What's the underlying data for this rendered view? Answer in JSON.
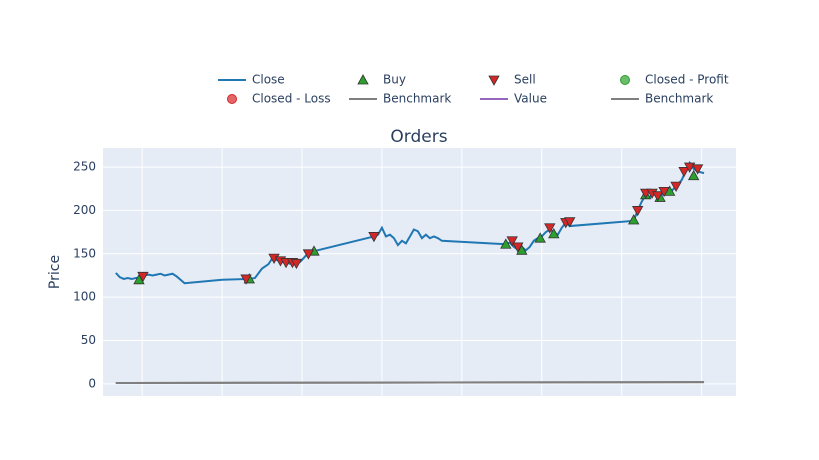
{
  "chart_data": {
    "type": "line",
    "title": "Orders",
    "y_label": "Price",
    "xlim": [
      -0.49,
      7.43
    ],
    "xticks": [
      0,
      1,
      2,
      3,
      4,
      5,
      6,
      7
    ],
    "ylim": [
      -14,
      272
    ],
    "yticks": [
      0,
      50,
      100,
      150,
      200,
      250
    ],
    "grid": true,
    "legend": "top",
    "series": [
      {
        "name": "Close",
        "color": "#1f77b4",
        "mode": "line",
        "x": [
          -0.33,
          -0.28,
          -0.23,
          -0.18,
          -0.13,
          -0.08,
          -0.03,
          0.03,
          0.08,
          0.13,
          0.18,
          0.23,
          0.28,
          0.33,
          0.38,
          0.43,
          0.48,
          0.53,
          1.0,
          1.33,
          1.41,
          1.5,
          1.58,
          1.63,
          1.68,
          1.73,
          1.78,
          1.83,
          1.88,
          1.93,
          1.98,
          2.05,
          2.1,
          2.15,
          2.9,
          2.95,
          3.0,
          3.05,
          3.1,
          3.15,
          3.2,
          3.25,
          3.3,
          3.35,
          3.4,
          3.45,
          3.5,
          3.55,
          3.6,
          3.65,
          3.7,
          3.75,
          4.55,
          4.6,
          4.65,
          4.7,
          4.75,
          4.8,
          4.85,
          4.9,
          4.95,
          5.0,
          5.05,
          5.1,
          5.15,
          5.2,
          5.25,
          5.3,
          5.35,
          6.15,
          6.2,
          6.25,
          6.3,
          6.35,
          6.4,
          6.45,
          6.5,
          6.55,
          6.6,
          6.65,
          6.7,
          6.75,
          6.8,
          6.85,
          6.9,
          6.95,
          7.03
        ],
        "values": [
          128,
          123,
          121,
          122,
          121,
          122,
          123,
          125,
          126,
          125,
          126,
          127,
          125,
          126,
          127,
          124,
          120,
          116,
          120,
          121,
          122,
          133,
          138,
          145,
          143,
          141,
          140,
          139,
          138,
          138,
          141,
          148,
          152,
          153,
          170,
          172,
          180,
          170,
          172,
          168,
          160,
          165,
          162,
          170,
          178,
          176,
          168,
          172,
          168,
          170,
          168,
          165,
          161,
          163,
          158,
          155,
          158,
          154,
          158,
          165,
          168,
          170,
          175,
          178,
          175,
          172,
          180,
          186,
          182,
          188,
          200,
          210,
          218,
          215,
          220,
          214,
          218,
          222,
          220,
          225,
          230,
          235,
          245,
          255,
          248,
          245,
          243
        ]
      },
      {
        "name": "Buy",
        "color": "#2ca02c",
        "mode": "markers",
        "symbol": "triangle-up",
        "x": [
          -0.04,
          1.34,
          2.15,
          4.55,
          4.75,
          4.98,
          5.15,
          6.15,
          6.3,
          6.48,
          6.6,
          6.9
        ],
        "values": [
          120,
          121,
          153,
          161,
          154,
          168,
          173,
          189,
          218,
          215,
          222,
          240
        ]
      },
      {
        "name": "Sell",
        "color": "#d62728",
        "mode": "markers",
        "symbol": "triangle-down",
        "x": [
          0.01,
          1.3,
          1.65,
          1.73,
          1.8,
          1.88,
          1.93,
          2.08,
          2.9,
          4.63,
          4.7,
          5.1,
          5.3,
          5.35,
          6.2,
          6.3,
          6.38,
          6.45,
          6.53,
          6.68,
          6.78,
          6.85,
          6.95
        ],
        "values": [
          124,
          121,
          145,
          142,
          140,
          140,
          139,
          150,
          170,
          165,
          158,
          180,
          186,
          187,
          200,
          220,
          220,
          217,
          222,
          228,
          245,
          250,
          248
        ]
      },
      {
        "name": "Closed - Profit",
        "color": "#2ca02c",
        "mode": "markers",
        "symbol": "circle",
        "x": [],
        "values": []
      },
      {
        "name": "Closed - Loss",
        "color": "#d62728",
        "mode": "markers",
        "symbol": "circle",
        "x": [],
        "values": []
      },
      {
        "name": "Benchmark",
        "color": "#7f7f7f",
        "mode": "line",
        "x": [
          -0.33,
          7.03
        ],
        "values": [
          1,
          2
        ]
      },
      {
        "name": "Value",
        "color": "#9467bd",
        "mode": "line",
        "x": [],
        "values": []
      },
      {
        "name": "Benchmark",
        "color": "#7f7f7f",
        "mode": "line",
        "x": [
          -0.33,
          7.03
        ],
        "values": [
          1,
          2
        ]
      }
    ]
  }
}
